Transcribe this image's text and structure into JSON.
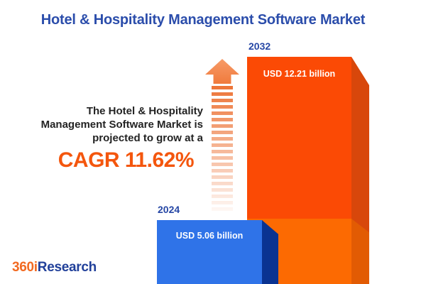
{
  "title": "Hotel & Hospitality Management Software Market",
  "annotation": {
    "line1": "The Hotel & Hospitality",
    "line2": "Management Software Market is",
    "line3": "projected to grow at a",
    "cagr": "CAGR 11.62%"
  },
  "logo": {
    "prefix": "360i",
    "suffix": "Research"
  },
  "colors": {
    "title_blue": "#2B4DAB",
    "year_label_blue": "#2647A5",
    "bar_2032_front": "#FB4A05",
    "bar_2032_front_lower": "#FC6A02",
    "bar_2032_side": "#D8470B",
    "bar_2032_side_lower": "#E25B03",
    "bar_2024_front": "#2F73E8",
    "bar_2024_side": "#0A3391",
    "cagr_orange": "#F4560D",
    "arrow_orange": "#F07A3C",
    "logo_orange": "#F26A21",
    "logo_blue": "#21409A",
    "value_text": "#FFFFFF",
    "annotation_text": "#232323",
    "background": "#FFFFFF"
  },
  "chart_data": {
    "type": "bar",
    "categories": [
      "2024",
      "2032"
    ],
    "values": [
      5.06,
      12.21
    ],
    "value_labels": [
      "USD 5.06 billion",
      "USD 12.21 billion"
    ],
    "unit": "USD billion",
    "cagr_percent": 11.62,
    "title": "Hotel & Hospitality Management Software Market",
    "xlabel": "",
    "ylabel": "",
    "legend": "none",
    "grid": false,
    "style": "3d-infographic-bars",
    "series_colors": [
      "#2F73E8",
      "#FB4A05"
    ],
    "annotation": "The Hotel & Hospitality Management Software Market is projected to grow at a CAGR 11.62%"
  }
}
